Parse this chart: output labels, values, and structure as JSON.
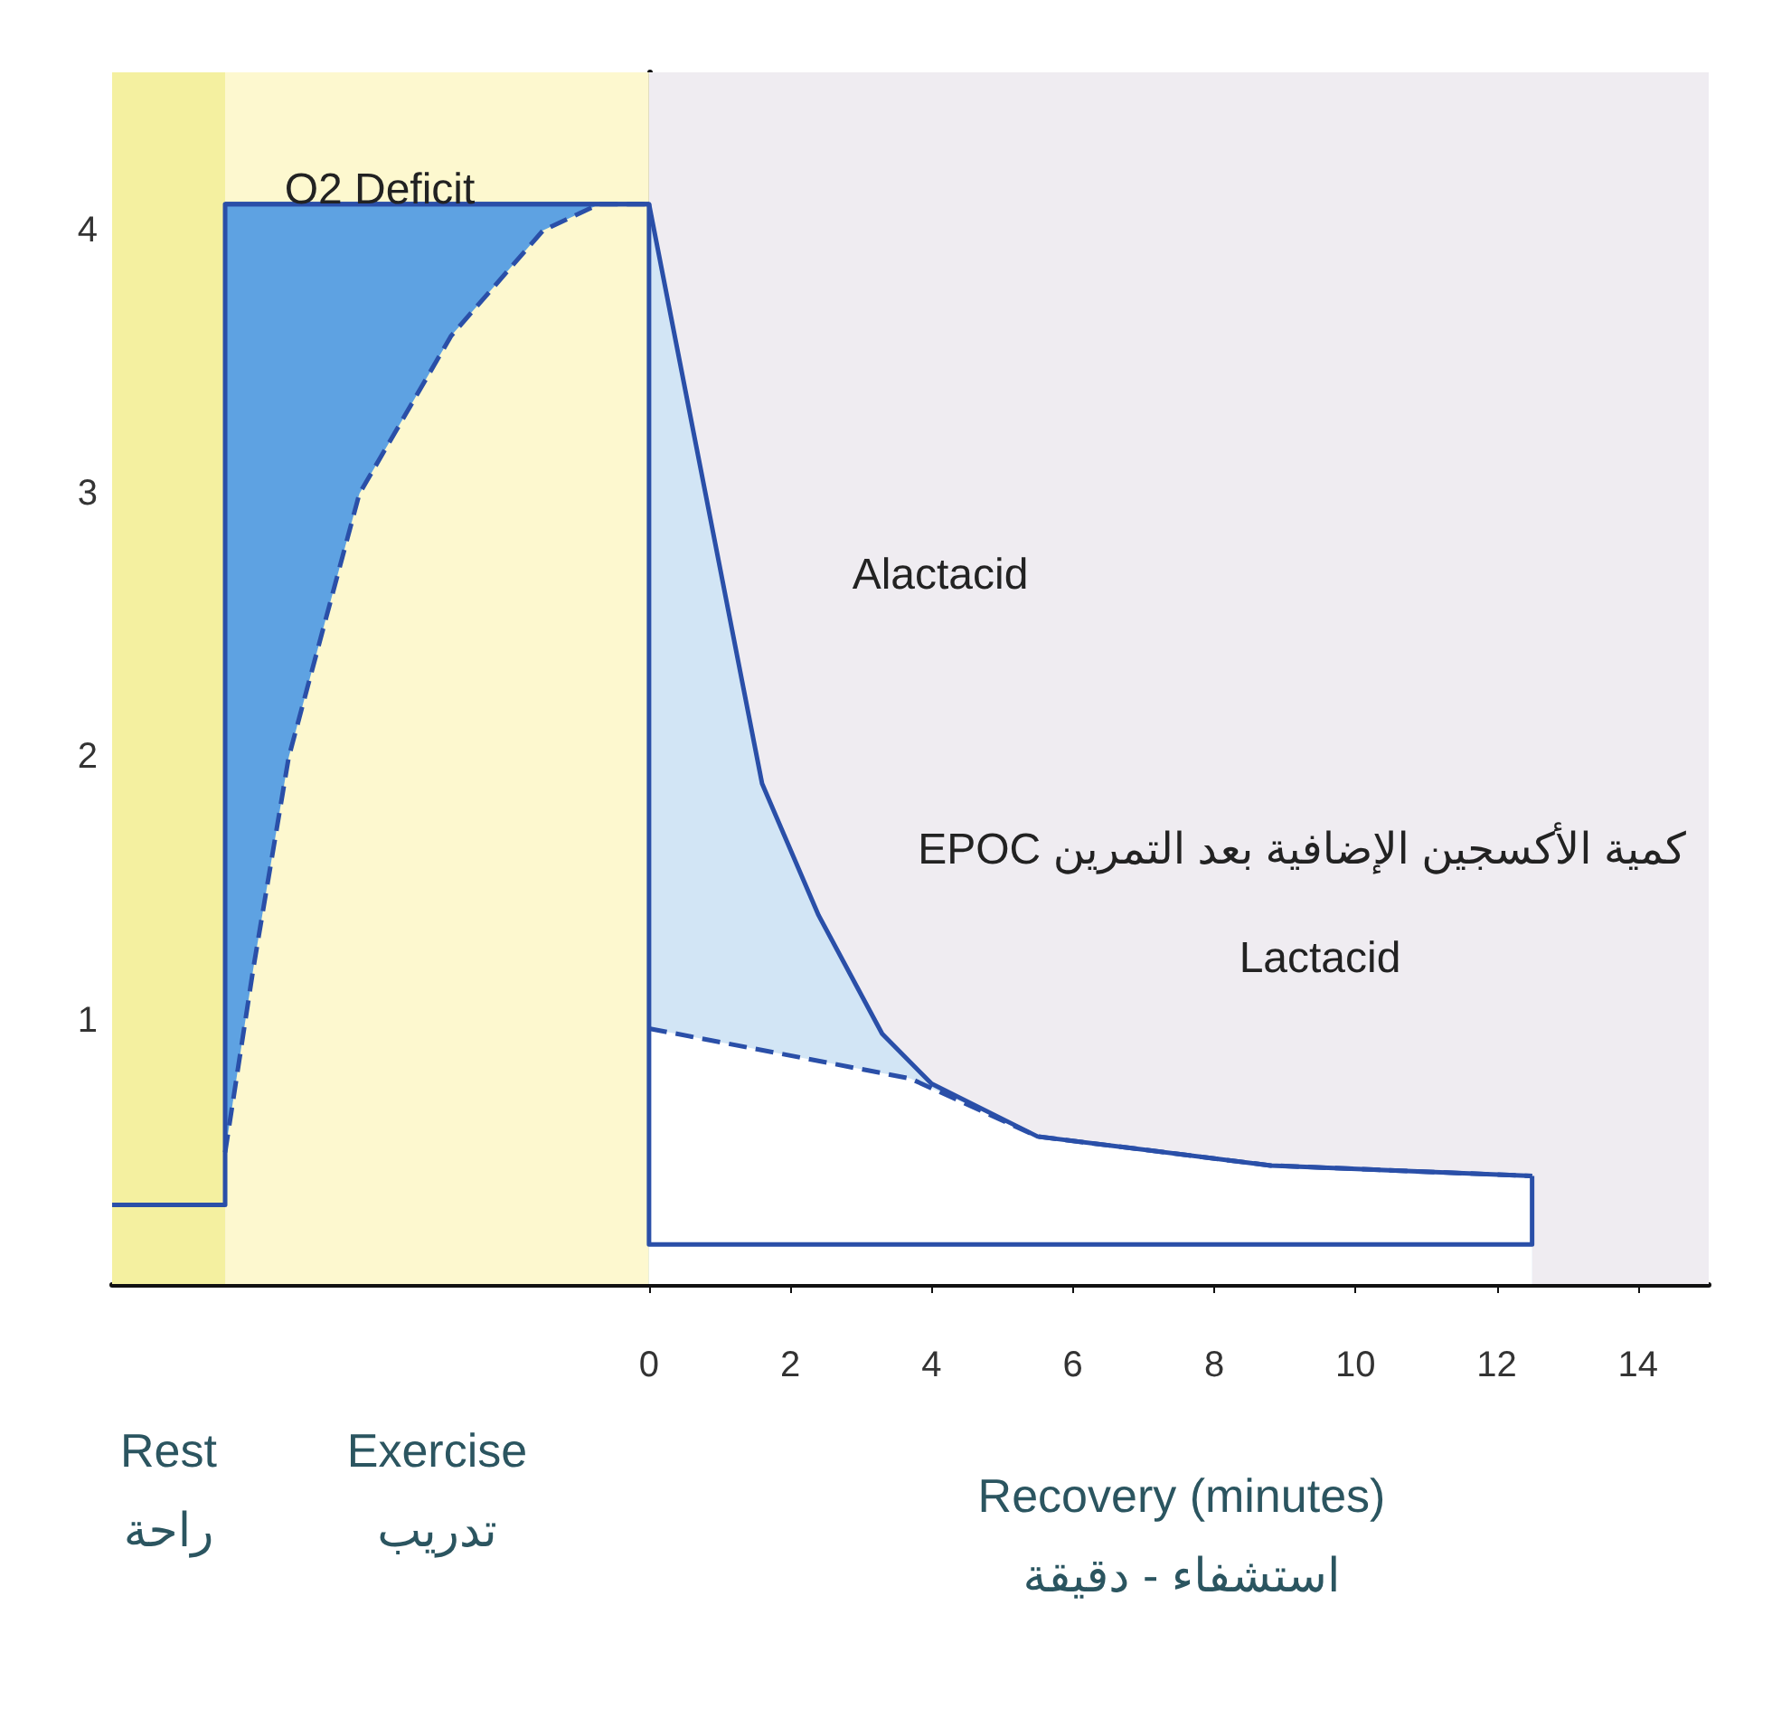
{
  "chart_data": {
    "type": "area",
    "xlabel": "Recovery (minutes)\nاستشفاء - دقيقة",
    "xlim": [
      -7.6,
      15
    ],
    "xticks": [
      0,
      2,
      4,
      6,
      8,
      10,
      12,
      14
    ],
    "ylim": [
      0,
      4.6
    ],
    "yticks": [
      1,
      2,
      3,
      4
    ],
    "marker": "none",
    "bands": [
      {
        "axis": "x",
        "from": -7.6,
        "to": -6,
        "label": "Rest\nراحة",
        "color": "#f4f0a0"
      },
      {
        "axis": "x",
        "from": -6,
        "to": 0,
        "label": "Exercise\nتدريب",
        "color": "#fdf8cf"
      },
      {
        "axis": "x",
        "from": 0,
        "to": 15,
        "color": "#efecf1"
      }
    ],
    "series": [
      {
        "color": "#5ea2e2",
        "x": [
          -6,
          0
        ],
        "values": [
          4.1,
          4.1
        ],
        "line_style": "solid"
      },
      {
        "type": "line",
        "color": "#2a4fa8",
        "x": [
          -6,
          -5.6,
          -5.1,
          -4.1,
          -2.8,
          -1.5,
          -0.7,
          0
        ],
        "values": [
          0.5,
          1.2,
          2.0,
          3.0,
          3.6,
          4.0,
          4.1,
          4.1
        ],
        "line_style": "dashed"
      },
      {
        "color": "#d2e5f5",
        "x": [
          0,
          0.8,
          1.6,
          2.4,
          3.3,
          4.0,
          5.5,
          8.8,
          12.5
        ],
        "values": [
          4.1,
          3.0,
          1.9,
          1.4,
          0.95,
          0.76,
          0.56,
          0.45,
          0.41
        ],
        "line_style": "solid"
      },
      {
        "color": "#ffffff",
        "x": [
          0,
          3.7,
          5.5,
          8.8,
          12.5
        ],
        "values": [
          0.97,
          0.78,
          0.56,
          0.45,
          0.41
        ],
        "line_style": "dashed"
      },
      {
        "type": "line",
        "color": "#2a4fa8",
        "x": [
          -7.6,
          -6,
          -6,
          0,
          0,
          12.5,
          12.5
        ],
        "values": [
          0.3,
          0.3,
          4.1,
          4.1,
          0.15,
          0.15,
          0.41
        ],
        "line_style": "solid"
      }
    ],
    "annotations": [
      "O2 Deficit",
      "Alactacid",
      "EPOC كمية الأكسجين الإضافية بعد التمرين",
      "Lactacid"
    ]
  }
}
